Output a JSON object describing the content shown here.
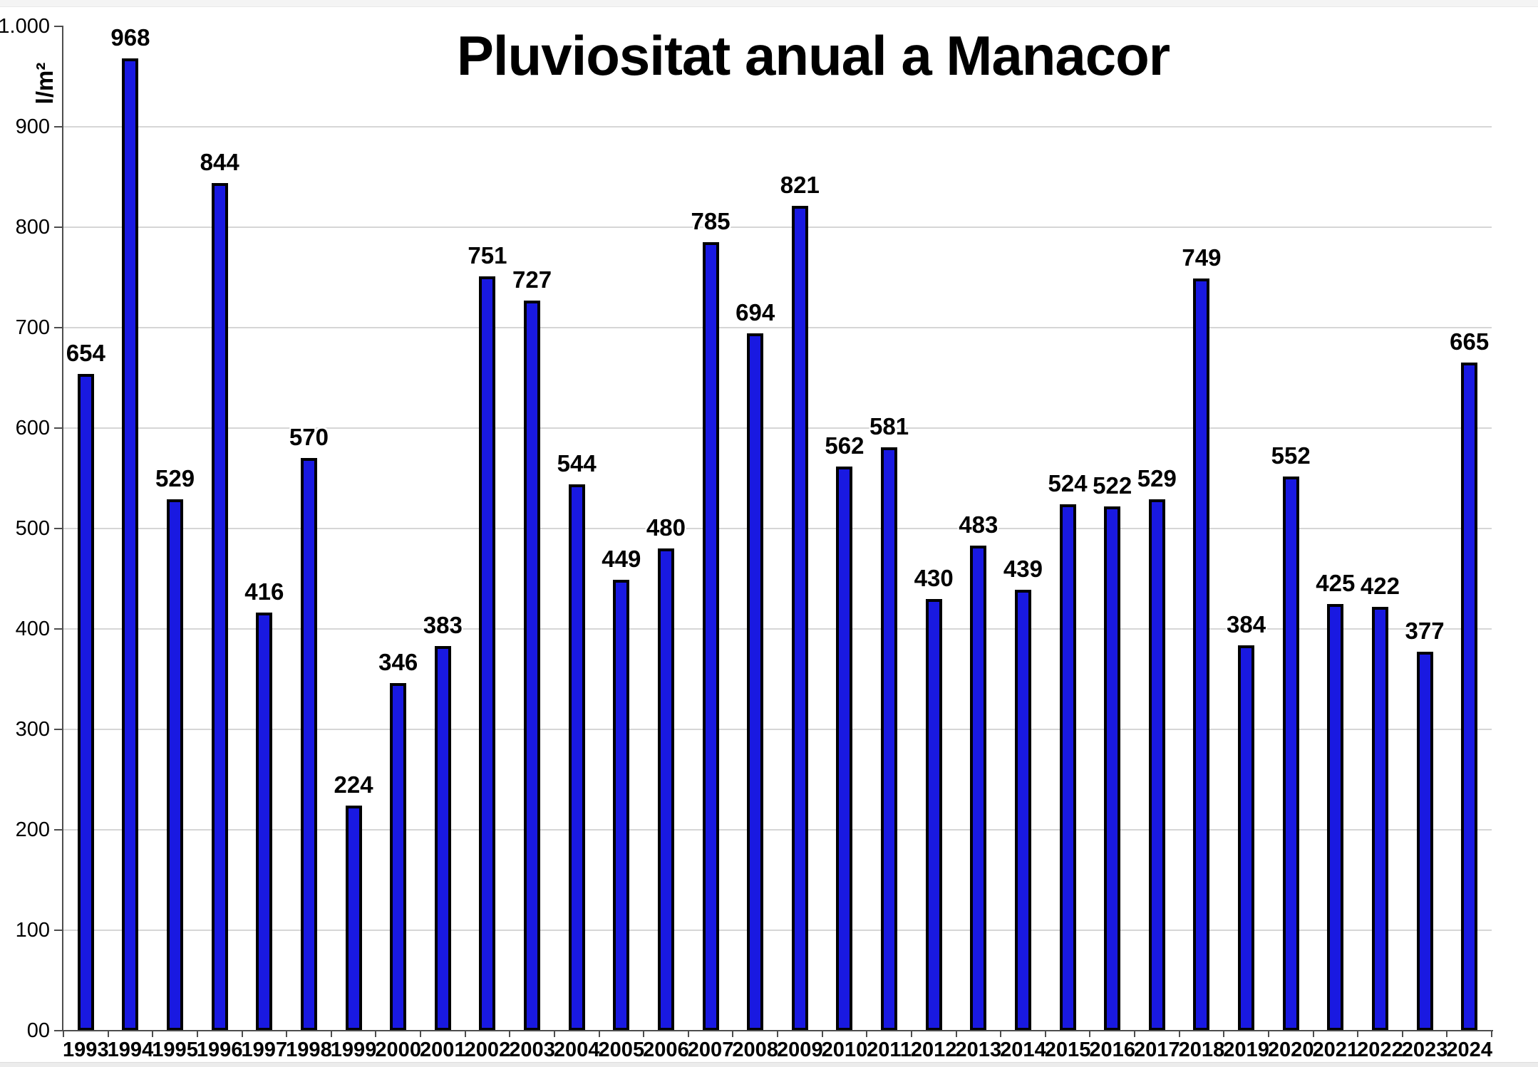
{
  "chart_data": {
    "type": "bar",
    "title": "Pluviositat anual a Manacor",
    "ylabel": "l/m²",
    "xlabel": "",
    "categories": [
      "1993",
      "1994",
      "1995",
      "1996",
      "1997",
      "1998",
      "1999",
      "2000",
      "2001",
      "2002",
      "2003",
      "2004",
      "2005",
      "2006",
      "2007",
      "2008",
      "2009",
      "2010",
      "2011",
      "2012",
      "2013",
      "2014",
      "2015",
      "2016",
      "2017",
      "2018",
      "2019",
      "2020",
      "2021",
      "2022",
      "2023",
      "2024"
    ],
    "values": [
      654,
      968,
      529,
      844,
      416,
      570,
      224,
      346,
      383,
      751,
      727,
      544,
      449,
      480,
      785,
      694,
      821,
      562,
      581,
      430,
      483,
      439,
      524,
      522,
      529,
      749,
      384,
      552,
      425,
      422,
      377,
      665
    ],
    "ylim": [
      0,
      1000
    ],
    "ytick_step": 100,
    "ytick_labels": [
      "00",
      "100",
      "200",
      "300",
      "400",
      "500",
      "600",
      "700",
      "800",
      "900",
      "1.000"
    ],
    "grid": "horizontal",
    "legend": "none",
    "colors": {
      "bar_fill": "#1919e1",
      "bar_border": "#000000",
      "gridline": "#d6d6d6",
      "axis": "#4d4d4d",
      "text": "#000000"
    }
  }
}
